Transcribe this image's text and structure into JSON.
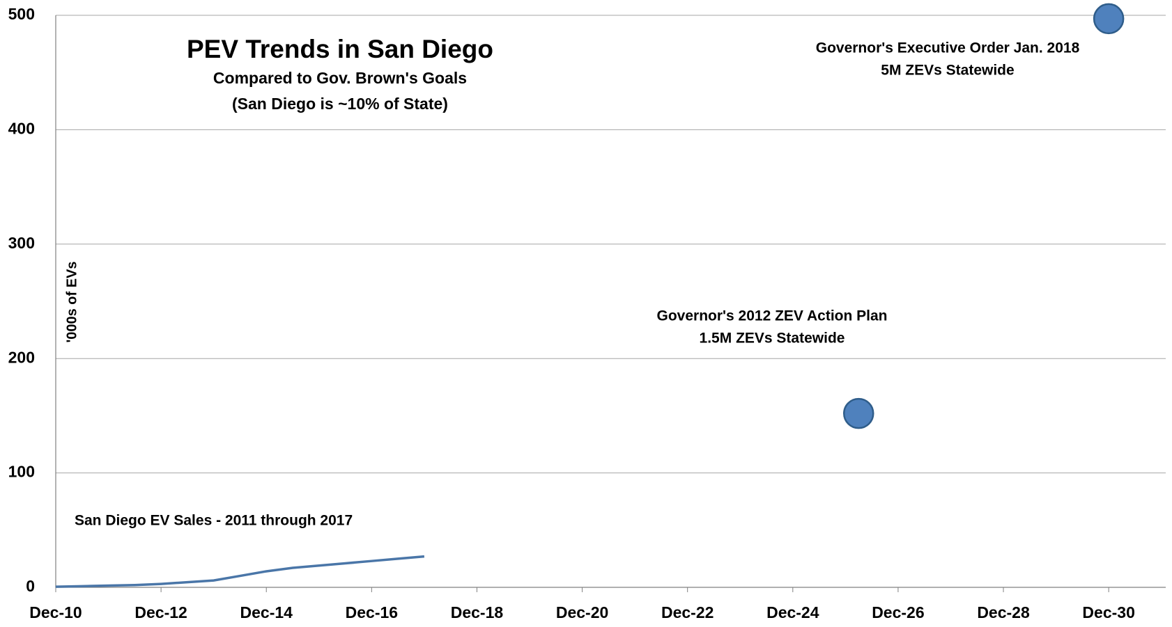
{
  "chart_data": {
    "type": "line",
    "title": "PEV Trends in San Diego",
    "subtitle": [
      "Compared to Gov. Brown's Goals",
      "(San Diego is ~10% of State)"
    ],
    "y_label": "'000s of EVs",
    "annotations": [
      [
        "San Diego EV Sales - 2011 through 2017"
      ],
      [
        "Governor's 2012 ZEV Action Plan",
        "1.5M ZEVs Statewide"
      ],
      [
        "Governor's Executive Order Jan. 2018",
        "5M ZEVs Statewide"
      ]
    ],
    "series": [
      {
        "type": "line",
        "color": "#4a76a8",
        "x": [
          "2010-12",
          "2011-06",
          "2011-12",
          "2012-06",
          "2012-12",
          "2013-06",
          "2013-12",
          "2014-06",
          "2014-12",
          "2015-06",
          "2015-12",
          "2016-06",
          "2016-12",
          "2017-06",
          "2017-12"
        ],
        "values": [
          0.5,
          1,
          1.5,
          2,
          3,
          4.5,
          6,
          10,
          14,
          17,
          19,
          21,
          23,
          25,
          27
        ]
      },
      {
        "type": "scatter",
        "color": "#4f81bd",
        "x": [
          "2026-03",
          "2030-12"
        ],
        "values": [
          152,
          497
        ]
      }
    ],
    "xlim": [
      "2010-12",
      "2032-01"
    ],
    "xticks": [
      {
        "value": "2010-12",
        "label": "Dec-10"
      },
      {
        "value": "2012-12",
        "label": "Dec-12"
      },
      {
        "value": "2014-12",
        "label": "Dec-14"
      },
      {
        "value": "2016-12",
        "label": "Dec-16"
      },
      {
        "value": "2018-12",
        "label": "Dec-18"
      },
      {
        "value": "2020-12",
        "label": "Dec-20"
      },
      {
        "value": "2022-12",
        "label": "Dec-22"
      },
      {
        "value": "2024-12",
        "label": "Dec-24"
      },
      {
        "value": "2026-12",
        "label": "Dec-26"
      },
      {
        "value": "2028-12",
        "label": "Dec-28"
      },
      {
        "value": "2030-12",
        "label": "Dec-30"
      }
    ],
    "ylim": [
      0,
      500
    ],
    "yticks": [
      0,
      100,
      200,
      300,
      400,
      500
    ],
    "grid": true
  }
}
